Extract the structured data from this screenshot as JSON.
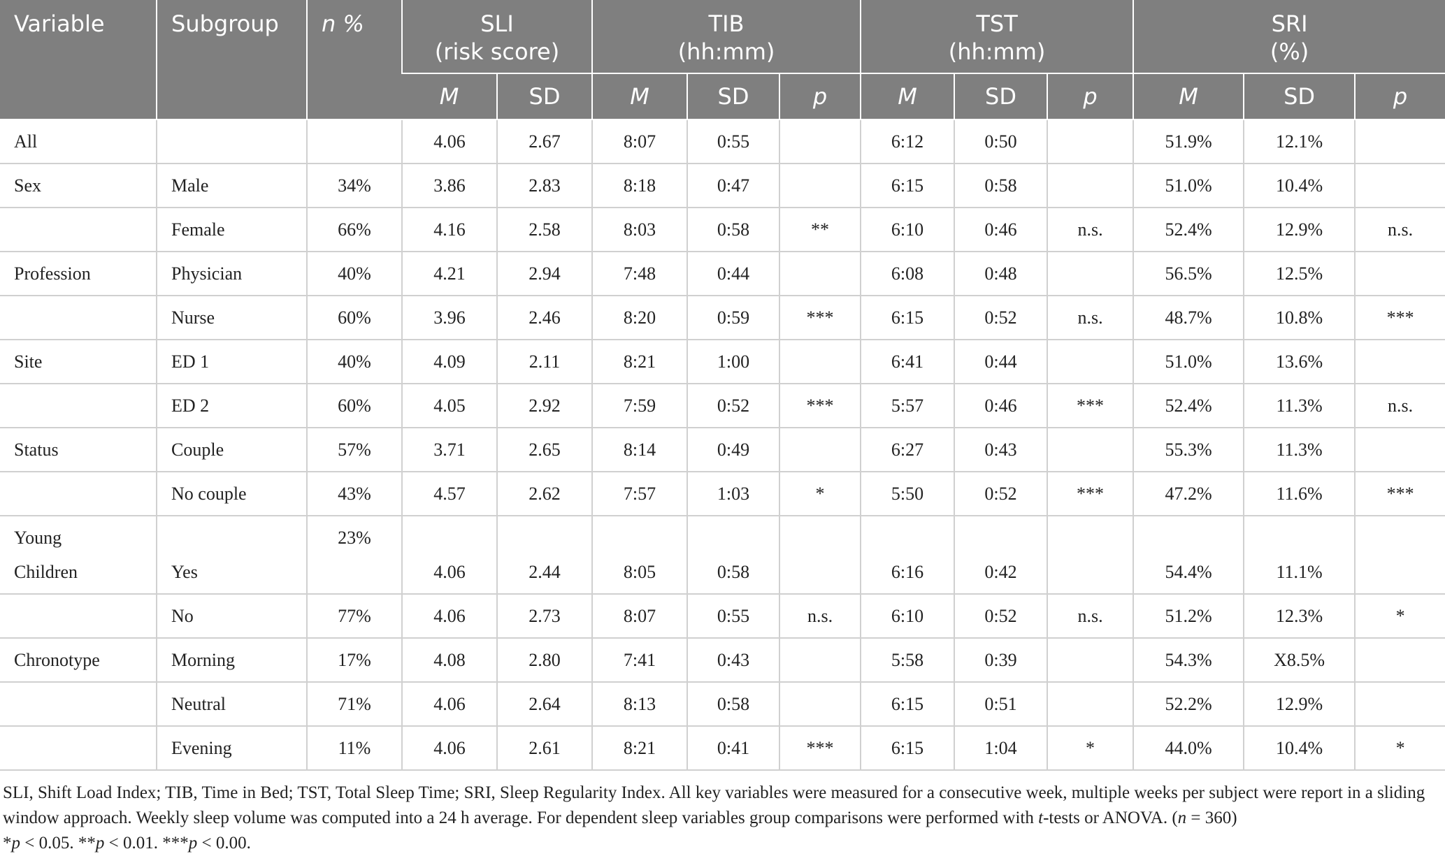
{
  "table": {
    "header": {
      "fixed": [
        "Variable",
        "Subgroup",
        "n %"
      ],
      "groups": [
        {
          "lines": [
            "SLI",
            "(risk score)"
          ],
          "sub": [
            "M",
            "SD"
          ]
        },
        {
          "lines": [
            "TIB",
            "(hh:mm)"
          ],
          "sub": [
            "M",
            "SD",
            "p"
          ]
        },
        {
          "lines": [
            "TST",
            "(hh:mm)"
          ],
          "sub": [
            "M",
            "SD",
            "p"
          ]
        },
        {
          "lines": [
            "SRI",
            "(%)"
          ],
          "sub": [
            "M",
            "SD",
            "p"
          ]
        }
      ]
    },
    "rows": [
      [
        "All",
        null,
        null,
        "4.06",
        "2.67",
        "8:07",
        "0:55",
        null,
        "6:12",
        "0:50",
        null,
        "51.9%",
        "12.1%",
        null
      ],
      [
        "Sex",
        "Male",
        "34%",
        "3.86",
        "2.83",
        "8:18",
        "0:47",
        null,
        "6:15",
        "0:58",
        null,
        "51.0%",
        "10.4%",
        null
      ],
      [
        null,
        "Female",
        "66%",
        "4.16",
        "2.58",
        "8:03",
        "0:58",
        "**",
        "6:10",
        "0:46",
        "n.s.",
        "52.4%",
        "12.9%",
        "n.s."
      ],
      [
        "Profession",
        "Physician",
        "40%",
        "4.21",
        "2.94",
        "7:48",
        "0:44",
        null,
        "6:08",
        "0:48",
        null,
        "56.5%",
        "12.5%",
        null
      ],
      [
        null,
        "Nurse",
        "60%",
        "3.96",
        "2.46",
        "8:20",
        "0:59",
        "***",
        "6:15",
        "0:52",
        "n.s.",
        "48.7%",
        "10.8%",
        "***"
      ],
      [
        "Site",
        "ED 1",
        "40%",
        "4.09",
        "2.11",
        "8:21",
        "1:00",
        null,
        "6:41",
        "0:44",
        null,
        "51.0%",
        "13.6%",
        null
      ],
      [
        null,
        "ED 2",
        "60%",
        "4.05",
        "2.92",
        "7:59",
        "0:52",
        "***",
        "5:57",
        "0:46",
        "***",
        "52.4%",
        "11.3%",
        "n.s."
      ],
      [
        "Status",
        "Couple",
        "57%",
        "3.71",
        "2.65",
        "8:14",
        "0:49",
        null,
        "6:27",
        "0:43",
        null,
        "55.3%",
        "11.3%",
        null
      ],
      [
        null,
        "No couple",
        "43%",
        "4.57",
        "2.62",
        "7:57",
        "1:03",
        "*",
        "5:50",
        "0:52",
        "***",
        "47.2%",
        "11.6%",
        "***"
      ],
      [
        "Young Children",
        "Yes",
        "23%",
        "4.06",
        "2.44",
        "8:05",
        "0:58",
        null,
        "6:16",
        "0:42",
        null,
        "54.4%",
        "11.1%",
        null
      ],
      [
        null,
        "No",
        "77%",
        "4.06",
        "2.73",
        "8:07",
        "0:55",
        "n.s.",
        "6:10",
        "0:52",
        "n.s.",
        "51.2%",
        "12.3%",
        "*"
      ],
      [
        "Chronotype",
        "Morning",
        "17%",
        "4.08",
        "2.80",
        "7:41",
        "0:43",
        null,
        "5:58",
        "0:39",
        null,
        "54.3%",
        "X8.5%",
        null
      ],
      [
        null,
        "Neutral",
        "71%",
        "4.06",
        "2.64",
        "8:13",
        "0:58",
        null,
        "6:15",
        "0:51",
        null,
        "52.2%",
        "12.9%",
        null
      ],
      [
        null,
        "Evening",
        "11%",
        "4.06",
        "2.61",
        "8:21",
        "0:41",
        "***",
        "6:15",
        "1:04",
        "*",
        "44.0%",
        "10.4%",
        "*"
      ]
    ],
    "footnote": [
      {
        "text": "SLI, Shift Load Index; TIB, Time in Bed; TST, Total Sleep Time; SRI, Sleep Regularity Index. All key variables were measured for a consecutive week, multiple weeks per subject were report in a sliding window approach. Weekly sleep volume was computed into a 24 h average. For dependent sleep variables group comparisons were performed with "
      },
      {
        "text": "t",
        "italic": true
      },
      {
        "text": "-tests or ANOVA. ("
      },
      {
        "text": "n",
        "italic": true
      },
      {
        "text": " = 360)"
      }
    ],
    "significance": [
      {
        "text": "*"
      },
      {
        "text": "p",
        "italic": true
      },
      {
        "text": " < 0.05. **"
      },
      {
        "text": "p",
        "italic": true
      },
      {
        "text": " < 0.01. ***"
      },
      {
        "text": "p",
        "italic": true
      },
      {
        "text": " < 0.00."
      }
    ]
  }
}
